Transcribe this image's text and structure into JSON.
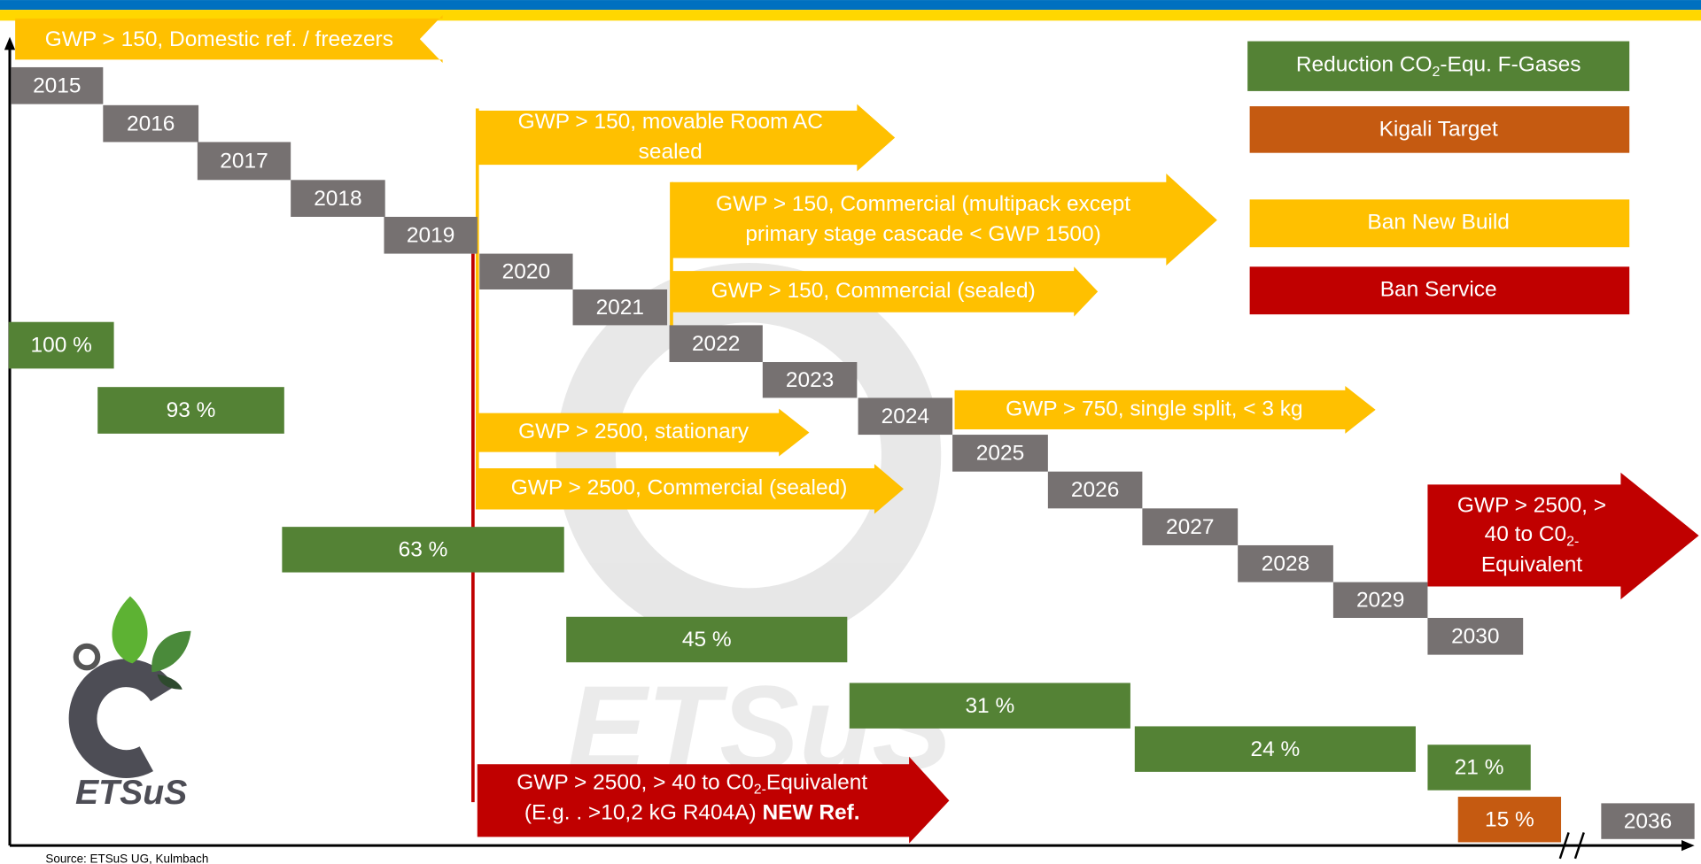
{
  "years": [
    "2015",
    "2016",
    "2017",
    "2018",
    "2019",
    "2020",
    "2021",
    "2022",
    "2023",
    "2024",
    "2025",
    "2026",
    "2027",
    "2028",
    "2029",
    "2030",
    "2036"
  ],
  "reductions": [
    "100 %",
    "93 %",
    "63 %",
    "45 %",
    "31 %",
    "24 %",
    "21 %"
  ],
  "kigali": "15 %",
  "arrows": [
    {
      "lines": [
        "GWP > 150, Domestic ref. / freezers"
      ]
    },
    {
      "lines": [
        "GWP > 150, movable Room AC",
        "sealed"
      ]
    },
    {
      "lines": [
        "GWP > 150, Commercial (multipack  except",
        "primary stage cascade < GWP 1500)"
      ]
    },
    {
      "lines": [
        "GWP > 150, Commercial (sealed)"
      ]
    },
    {
      "lines": [
        "GWP > 750, single split, < 3 kg"
      ]
    },
    {
      "lines": [
        "GWP > 2500, stationary"
      ]
    },
    {
      "lines": [
        "GWP > 2500, Commercial (sealed)"
      ]
    },
    {
      "lines": [
        [
          "GWP > 2500, > 40 to C0",
          "2-",
          "Equivalent"
        ],
        [
          "(E.g. . >10,2 kG R404A) ",
          "NEW Ref."
        ]
      ]
    },
    {
      "lines": [
        "GWP > 2500, >",
        [
          "40 to C0",
          "2-"
        ],
        "Equivalent"
      ]
    }
  ],
  "legend": [
    {
      "label": [
        "Reduction CO",
        "2",
        "-Equ. F-Gases"
      ]
    },
    {
      "label": "Kigali Target"
    },
    {
      "label": "Ban New Build"
    },
    {
      "label": "Ban Service"
    }
  ],
  "logo": "ETSuS",
  "watermark": "ETSuS",
  "source": "Source: ETSuS UG, Kulmbach"
}
